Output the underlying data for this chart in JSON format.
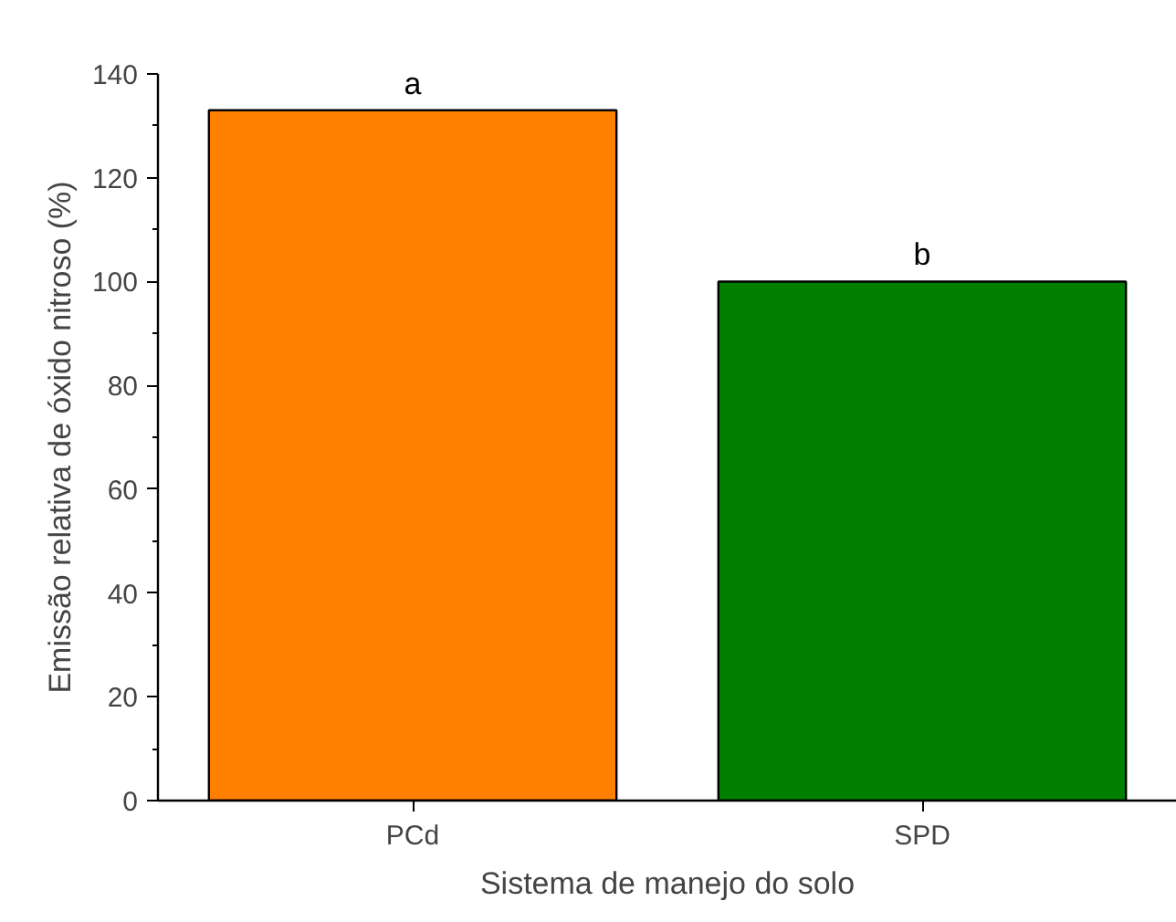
{
  "chart_data": {
    "type": "bar",
    "xlabel": "Sistema de manejo do solo",
    "ylabel": "Emissão relativa de óxido nitroso (%)",
    "categories": [
      "PCd",
      "SPD"
    ],
    "values": [
      133,
      100
    ],
    "colors": [
      "#ff7f00",
      "#007f00"
    ],
    "ylim": [
      0,
      140
    ],
    "yticks": [
      0,
      20,
      40,
      60,
      80,
      100,
      120,
      140
    ],
    "grid": false,
    "annotations": [
      "a",
      "b"
    ]
  }
}
